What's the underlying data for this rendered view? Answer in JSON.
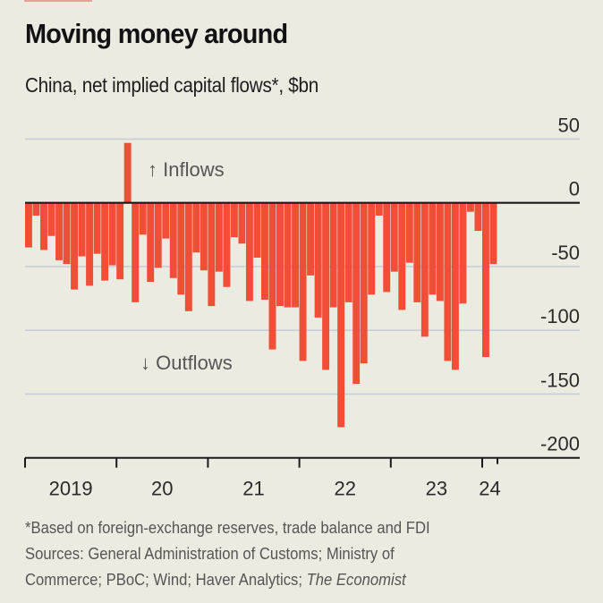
{
  "header": {
    "title": "Moving money around",
    "subtitle": "China, net implied capital flows*, $bn"
  },
  "colors": {
    "background": "#ecebe1",
    "bar": "#f04e37",
    "gridline": "#c9cdd6",
    "axis": "#1a1a1a",
    "tag": "#e3120b"
  },
  "annotations": {
    "inflows": "↑ Inflows",
    "outflows": "↓ Outflows"
  },
  "footer": {
    "note": "*Based on foreign-exchange reserves, trade balance and FDI",
    "sources_line1": "Sources: General Administration of Customs; Ministry of",
    "sources_line2": "Commerce; PBoC; Wind; Haver Analytics; ",
    "sources_italic": "The Economist"
  },
  "chart_data": {
    "type": "bar",
    "title": "Moving money around",
    "subtitle": "China, net implied capital flows*, $bn",
    "xlabel": "",
    "ylabel": "$bn",
    "frequency": "monthly",
    "start": "2019-01",
    "end": "2024-02",
    "ylim": [
      -200,
      50
    ],
    "yticks": [
      50,
      0,
      -50,
      -100,
      -150,
      -200
    ],
    "ytick_labels": [
      "50",
      "0",
      "-50",
      "-100",
      "-150",
      "-200"
    ],
    "y_axis_side": "right",
    "grid": true,
    "xtick_labels": [
      "2019",
      "20",
      "21",
      "22",
      "23",
      "24"
    ],
    "categories": [
      "2019-01",
      "2019-02",
      "2019-03",
      "2019-04",
      "2019-05",
      "2019-06",
      "2019-07",
      "2019-08",
      "2019-09",
      "2019-10",
      "2019-11",
      "2019-12",
      "2020-01",
      "2020-02",
      "2020-03",
      "2020-04",
      "2020-05",
      "2020-06",
      "2020-07",
      "2020-08",
      "2020-09",
      "2020-10",
      "2020-11",
      "2020-12",
      "2021-01",
      "2021-02",
      "2021-03",
      "2021-04",
      "2021-05",
      "2021-06",
      "2021-07",
      "2021-08",
      "2021-09",
      "2021-10",
      "2021-11",
      "2021-12",
      "2022-01",
      "2022-02",
      "2022-03",
      "2022-04",
      "2022-05",
      "2022-06",
      "2022-07",
      "2022-08",
      "2022-09",
      "2022-10",
      "2022-11",
      "2022-12",
      "2023-01",
      "2023-02",
      "2023-03",
      "2023-04",
      "2023-05",
      "2023-06",
      "2023-07",
      "2023-08",
      "2023-09",
      "2023-10",
      "2023-11",
      "2023-12",
      "2024-01",
      "2024-02"
    ],
    "values": [
      -35,
      -10,
      -37,
      -26,
      -45,
      -48,
      -68,
      -42,
      -65,
      -40,
      -61,
      -49,
      -60,
      47,
      -78,
      -25,
      -62,
      -51,
      -28,
      -59,
      -72,
      -85,
      -39,
      -53,
      -81,
      -54,
      -66,
      -27,
      -32,
      -77,
      -43,
      -76,
      -115,
      -81,
      -82,
      -82,
      -124,
      -57,
      -90,
      -131,
      -82,
      -176,
      -78,
      -142,
      -126,
      -72,
      -10,
      -70,
      -54,
      -84,
      -47,
      -78,
      -105,
      -72,
      -77,
      -124,
      -131,
      -79,
      -7,
      -22,
      -121,
      -48
    ],
    "annotations": [
      "↑ Inflows",
      "↓ Outflows"
    ],
    "legend": "none"
  }
}
